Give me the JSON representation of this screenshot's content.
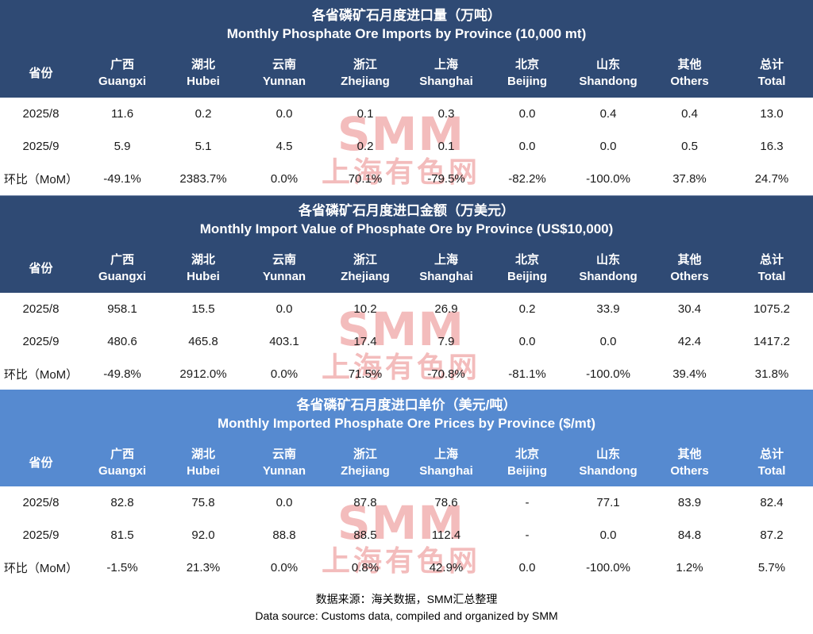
{
  "watermark": {
    "line1": "SMM",
    "line2": "上海有色网"
  },
  "columns": [
    {
      "zh": "省份",
      "en": ""
    },
    {
      "zh": "广西",
      "en": "Guangxi"
    },
    {
      "zh": "湖北",
      "en": "Hubei"
    },
    {
      "zh": "云南",
      "en": "Yunnan"
    },
    {
      "zh": "浙江",
      "en": "Zhejiang"
    },
    {
      "zh": "上海",
      "en": "Shanghai"
    },
    {
      "zh": "北京",
      "en": "Beijing"
    },
    {
      "zh": "山东",
      "en": "Shandong"
    },
    {
      "zh": "其他",
      "en": "Others"
    },
    {
      "zh": "总计",
      "en": "Total"
    }
  ],
  "chart_data": [
    {
      "type": "table",
      "title_zh": "各省磷矿石月度进口量（万吨）",
      "title": "Monthly Phosphate Ore Imports by Province (10,000 mt)",
      "rows": [
        {
          "label": "2025/8",
          "values": [
            "11.6",
            "0.2",
            "0.0",
            "0.1",
            "0.3",
            "0.0",
            "0.4",
            "0.4",
            "13.0"
          ]
        },
        {
          "label": "2025/9",
          "values": [
            "5.9",
            "5.1",
            "4.5",
            "0.2",
            "0.1",
            "0.0",
            "0.0",
            "0.5",
            "16.3"
          ]
        },
        {
          "label": "环比（MoM）",
          "values": [
            "-49.1%",
            "2383.7%",
            "0.0%",
            "70.1%",
            "-79.5%",
            "-82.2%",
            "-100.0%",
            "37.8%",
            "24.7%"
          ]
        }
      ]
    },
    {
      "type": "table",
      "title_zh": "各省磷矿石月度进口金额（万美元）",
      "title": "Monthly Import Value of Phosphate Ore by Province (US$10,000)",
      "rows": [
        {
          "label": "2025/8",
          "values": [
            "958.1",
            "15.5",
            "0.0",
            "10.2",
            "26.9",
            "0.2",
            "33.9",
            "30.4",
            "1075.2"
          ]
        },
        {
          "label": "2025/9",
          "values": [
            "480.6",
            "465.8",
            "403.1",
            "17.4",
            "7.9",
            "0.0",
            "0.0",
            "42.4",
            "1417.2"
          ]
        },
        {
          "label": "环比（MoM）",
          "values": [
            "-49.8%",
            "2912.0%",
            "0.0%",
            "71.5%",
            "-70.8%",
            "-81.1%",
            "-100.0%",
            "39.4%",
            "31.8%"
          ]
        }
      ]
    },
    {
      "type": "table",
      "title_zh": "各省磷矿石月度进口单价（美元/吨）",
      "title": "Monthly Imported Phosphate Ore Prices by Province ($/mt)",
      "rows": [
        {
          "label": "2025/8",
          "values": [
            "82.8",
            "75.8",
            "0.0",
            "87.8",
            "78.6",
            "-",
            "77.1",
            "83.9",
            "82.4"
          ]
        },
        {
          "label": "2025/9",
          "values": [
            "81.5",
            "92.0",
            "88.8",
            "88.5",
            "112.4",
            "-",
            "0.0",
            "84.8",
            "87.2"
          ]
        },
        {
          "label": "环比（MoM）",
          "values": [
            "-1.5%",
            "21.3%",
            "0.0%",
            "0.8%",
            "42.9%",
            "0.0",
            "-100.0%",
            "1.2%",
            "5.7%"
          ]
        }
      ]
    }
  ],
  "footer": {
    "line_zh": "数据来源：海关数据，SMM汇总整理",
    "line_en": "Data source: Customs data, compiled and organized by SMM"
  }
}
